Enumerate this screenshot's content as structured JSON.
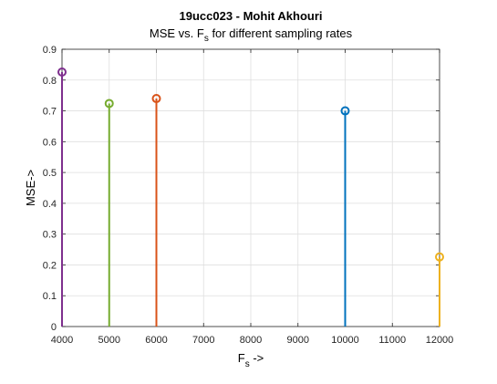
{
  "chart_data": {
    "type": "stem",
    "title": "19ucc023 - Mohit Akhouri",
    "subtitle_prefix": "MSE vs. F",
    "subtitle_sub": "s",
    "subtitle_suffix": " for different sampling rates",
    "xlabel_main": "F",
    "xlabel_sub": "s",
    "xlabel_suffix": " ->",
    "ylabel": "MSE->",
    "xlim": [
      4000,
      12000
    ],
    "ylim": [
      0,
      0.9
    ],
    "xticks": [
      4000,
      5000,
      6000,
      7000,
      8000,
      9000,
      10000,
      11000,
      12000
    ],
    "xtick_labels": [
      "4000",
      "5000",
      "6000",
      "7000",
      "8000",
      "9000",
      "10000",
      "11000",
      "12000"
    ],
    "yticks": [
      0,
      0.1,
      0.2,
      0.3,
      0.4,
      0.5,
      0.6,
      0.7,
      0.8,
      0.9
    ],
    "ytick_labels": [
      "0",
      "0.1",
      "0.2",
      "0.3",
      "0.4",
      "0.5",
      "0.6",
      "0.7",
      "0.8",
      "0.9"
    ],
    "grid": true,
    "series": [
      {
        "x": 4000,
        "y": 0.826,
        "color": "#7E2F8E"
      },
      {
        "x": 5000,
        "y": 0.724,
        "color": "#77AC30"
      },
      {
        "x": 6000,
        "y": 0.74,
        "color": "#D95319"
      },
      {
        "x": 10000,
        "y": 0.7,
        "color": "#0072BD"
      },
      {
        "x": 12000,
        "y": 0.226,
        "color": "#EDB120"
      }
    ]
  }
}
